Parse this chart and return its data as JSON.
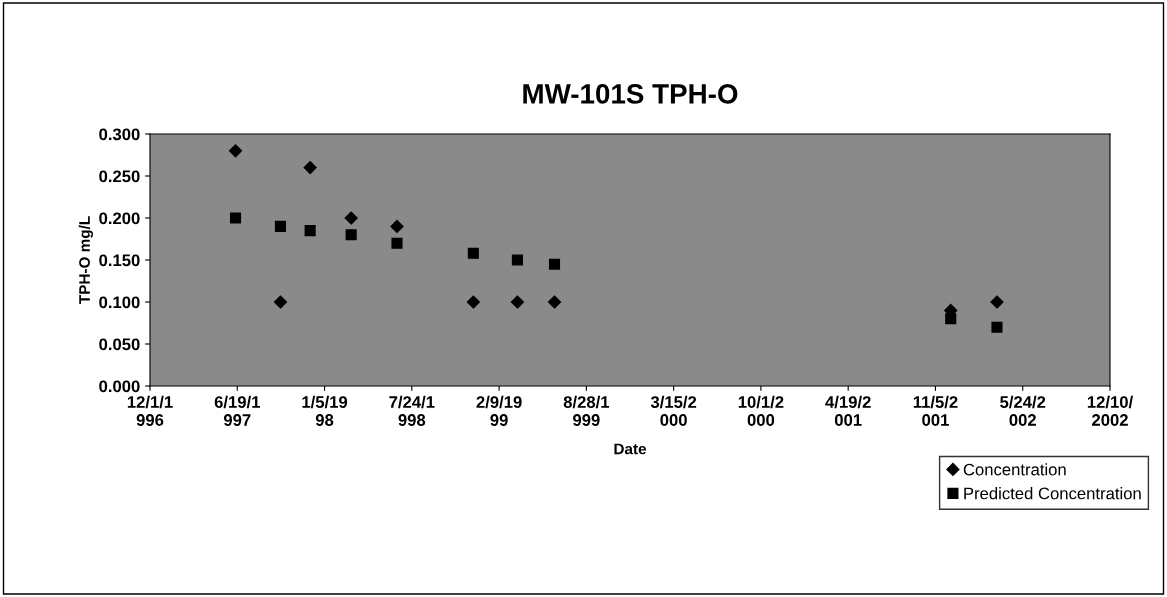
{
  "chart_data": {
    "type": "scatter",
    "title": "MW-101S TPH-O",
    "xlabel": "Date",
    "ylabel": "TPH-O mg/L",
    "x": [
      "1997-06-15",
      "1997-09-26",
      "1997-12-03",
      "1998-03-07",
      "1998-06-20",
      "1998-12-12",
      "1999-03-23",
      "1999-06-16",
      "2001-12-10",
      "2002-03-26"
    ],
    "series": [
      {
        "name": "Concentration",
        "color": "#000000",
        "marker": "diamond",
        "values": [
          0.28,
          0.1,
          0.26,
          0.2,
          0.19,
          0.1,
          0.1,
          0.1,
          0.09,
          0.1
        ]
      },
      {
        "name": "Predicted Concentration",
        "color": "#000000",
        "marker": "square",
        "values": [
          0.2,
          0.19,
          0.185,
          0.18,
          0.17,
          0.158,
          0.15,
          0.145,
          0.08,
          0.07
        ]
      }
    ],
    "xlim": [
      "1996-12-01",
      "2002-12-10"
    ],
    "xticks": [
      {
        "value": "1996-12-01",
        "label": "12/1/1\n996"
      },
      {
        "value": "1997-06-19",
        "label": "6/19/1\n997"
      },
      {
        "value": "1998-01-05",
        "label": "1/5/19\n98"
      },
      {
        "value": "1998-07-24",
        "label": "7/24/1\n998"
      },
      {
        "value": "1999-02-09",
        "label": "2/9/19\n99"
      },
      {
        "value": "1999-08-28",
        "label": "8/28/1\n999"
      },
      {
        "value": "2000-03-15",
        "label": "3/15/2\n000"
      },
      {
        "value": "2000-10-01",
        "label": "10/1/2\n000"
      },
      {
        "value": "2001-04-19",
        "label": "4/19/2\n001"
      },
      {
        "value": "2001-11-05",
        "label": "11/5/2\n001"
      },
      {
        "value": "2002-05-24",
        "label": "5/24/2\n002"
      },
      {
        "value": "2002-12-10",
        "label": "12/10/\n2002"
      }
    ],
    "ylim": [
      0,
      0.3
    ],
    "yticks": [
      {
        "value": 0,
        "label": "0.000"
      },
      {
        "value": 0.05,
        "label": "0.050"
      },
      {
        "value": 0.1,
        "label": "0.100"
      },
      {
        "value": 0.15,
        "label": "0.150"
      },
      {
        "value": 0.2,
        "label": "0.200"
      },
      {
        "value": 0.25,
        "label": "0.250"
      },
      {
        "value": 0.3,
        "label": "0.300"
      }
    ],
    "grid": false,
    "legend": "bottom right"
  }
}
